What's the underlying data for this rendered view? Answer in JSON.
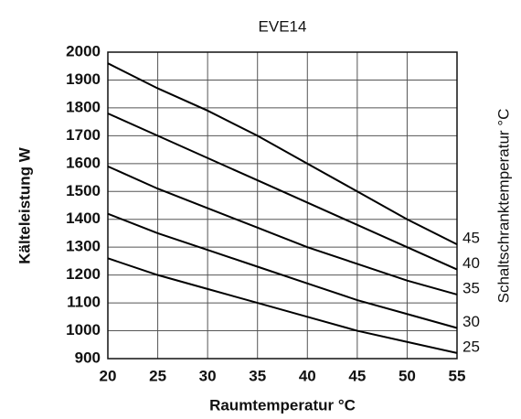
{
  "chart_data": {
    "type": "line",
    "title": "EVE14",
    "x_label": "Raumtemperatur °C",
    "y_label": "Kälteleistung W",
    "y2_label": "Schaltschranktemperatur °C",
    "x": [
      20,
      25,
      30,
      35,
      40,
      45,
      50,
      55
    ],
    "series": [
      {
        "name": "45",
        "color": "#000000",
        "values": [
          1960,
          1870,
          1790,
          1700,
          1600,
          1500,
          1400,
          1310
        ]
      },
      {
        "name": "40",
        "color": "#000000",
        "values": [
          1780,
          1700,
          1620,
          1540,
          1460,
          1380,
          1300,
          1220
        ]
      },
      {
        "name": "35",
        "color": "#000000",
        "values": [
          1590,
          1510,
          1440,
          1370,
          1300,
          1240,
          1180,
          1130
        ]
      },
      {
        "name": "30",
        "color": "#000000",
        "values": [
          1420,
          1350,
          1290,
          1230,
          1170,
          1110,
          1060,
          1010
        ]
      },
      {
        "name": "25",
        "color": "#000000",
        "values": [
          1260,
          1200,
          1150,
          1100,
          1050,
          1000,
          960,
          920
        ]
      }
    ],
    "xlim": [
      20,
      55
    ],
    "xticks": [
      20,
      25,
      30,
      35,
      40,
      45,
      50,
      55
    ],
    "ylim": [
      900,
      2000
    ],
    "yticks": [
      900,
      1000,
      1100,
      1200,
      1300,
      1400,
      1500,
      1600,
      1700,
      1800,
      1900,
      2000
    ],
    "grid": true
  }
}
